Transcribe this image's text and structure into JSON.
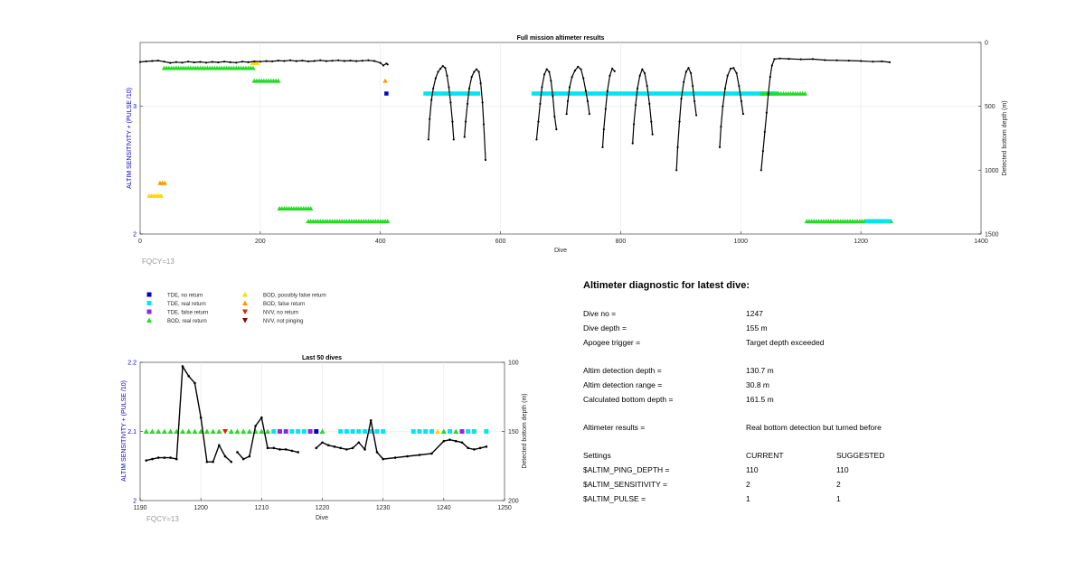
{
  "main_chart": {
    "title": "Full mission altimeter results",
    "xlabel": "Dive",
    "ylabel_left": "ALTIM SENSITIVITY + (PULSE /10)",
    "ylabel_right": "Detected bottom depth (m)",
    "note": "FQCY=13",
    "xticks": [
      "0",
      "200",
      "400",
      "600",
      "800",
      "1000",
      "1200",
      "1400"
    ],
    "yticks_left": [
      "2",
      "3"
    ],
    "yticks_right": [
      "0",
      "500",
      "1000",
      "1500"
    ]
  },
  "inset_chart": {
    "title": "Last 50 dives",
    "xlabel": "Dive",
    "ylabel_left": "ALTIM SENSITIVITY + (PULSE /10)",
    "ylabel_right": "Detected bottom depth (m)",
    "note": "FQCY=13",
    "xticks": [
      "1190",
      "1200",
      "1210",
      "1220",
      "1230",
      "1240",
      "1250"
    ],
    "yticks_left": [
      "2",
      "2.1",
      "2.2"
    ],
    "yticks_right": [
      "100",
      "150",
      "200"
    ]
  },
  "legend": {
    "items": [
      {
        "label": "TDE, no return",
        "color": "#0000c8",
        "shape": "square"
      },
      {
        "label": "TDE, real return",
        "color": "#00e5ee",
        "shape": "square"
      },
      {
        "label": "TDE, false return",
        "color": "#8a2be2",
        "shape": "square"
      },
      {
        "label": "BOD, real return",
        "color": "#22dd22",
        "shape": "triangle-up"
      },
      {
        "label": "BOD, possibly false return",
        "color": "#ffd700",
        "shape": "triangle-up"
      },
      {
        "label": "BOD, false return",
        "color": "#ff9900",
        "shape": "triangle-up"
      },
      {
        "label": "NVV, no return",
        "color": "#dd2200",
        "shape": "triangle-down"
      },
      {
        "label": "NVV, not pinging",
        "color": "#880000",
        "shape": "triangle-down"
      }
    ]
  },
  "diagnostic": {
    "title": "Altimeter diagnostic for latest dive:",
    "dive_no_label": "Dive no =",
    "dive_no": "1247",
    "dive_depth_label": "Dive depth =",
    "dive_depth": "155 m",
    "apogee_label": "Apogee trigger =",
    "apogee": "Target depth exceeded",
    "detect_depth_label": "Altim detection depth =",
    "detect_depth": "130.7 m",
    "detect_range_label": "Altim detection range =",
    "detect_range": "30.8 m",
    "calc_bottom_label": "Calculated bottom depth =",
    "calc_bottom": "161.5 m",
    "results_label": "Altimeter results =",
    "results": "Real bottom detection but turned before",
    "settings_label": "Settings",
    "current_label": "CURRENT",
    "suggested_label": "SUGGESTED",
    "settings": [
      {
        "name": "$ALTIM_PING_DEPTH =",
        "current": "110",
        "suggested": "110"
      },
      {
        "name": "$ALTIM_SENSITIVITY =",
        "current": "2",
        "suggested": "2"
      },
      {
        "name": "$ALTIM_PULSE =",
        "current": "1",
        "suggested": "1"
      }
    ]
  },
  "chart_data": [
    {
      "type": "scatter",
      "title": "Full mission altimeter results",
      "xlabel": "Dive",
      "ylabel": "ALTIM SENSITIVITY + (PULSE /10)",
      "y2label": "Detected bottom depth (m)",
      "xlim": [
        0,
        1400
      ],
      "ylim": [
        2,
        3.5
      ],
      "y2lim": [
        0,
        1500
      ],
      "y2_reversed": true,
      "depth_segments": [
        [
          [
            0,
            153
          ],
          [
            10,
            148
          ],
          [
            20,
            145
          ],
          [
            30,
            142
          ],
          [
            40,
            150
          ],
          [
            50,
            160
          ],
          [
            60,
            154
          ],
          [
            70,
            158
          ],
          [
            80,
            150
          ],
          [
            90,
            156
          ],
          [
            100,
            152
          ],
          [
            110,
            158
          ],
          [
            120,
            152
          ],
          [
            130,
            156
          ],
          [
            140,
            150
          ],
          [
            150,
            155
          ],
          [
            160,
            158
          ],
          [
            170,
            150
          ],
          [
            180,
            155
          ],
          [
            190,
            148
          ],
          [
            200,
            150
          ],
          [
            210,
            146
          ],
          [
            220,
            148
          ],
          [
            230,
            142
          ],
          [
            240,
            145
          ],
          [
            250,
            140
          ],
          [
            260,
            146
          ],
          [
            270,
            142
          ],
          [
            280,
            148
          ],
          [
            290,
            145
          ],
          [
            300,
            140
          ],
          [
            310,
            146
          ],
          [
            320,
            143
          ],
          [
            330,
            140
          ],
          [
            340,
            145
          ],
          [
            350,
            142
          ],
          [
            360,
            146
          ],
          [
            370,
            143
          ],
          [
            380,
            140
          ],
          [
            390,
            145
          ],
          [
            400,
            160
          ],
          [
            405,
            180
          ],
          [
            410,
            165
          ],
          [
            412,
            172
          ]
        ],
        [
          [
            480,
            760
          ],
          [
            482,
            600
          ],
          [
            485,
            450
          ],
          [
            488,
            360
          ],
          [
            492,
            280
          ],
          [
            496,
            230
          ],
          [
            500,
            205
          ],
          [
            504,
            185
          ],
          [
            508,
            200
          ],
          [
            511,
            260
          ],
          [
            514,
            350
          ],
          [
            517,
            470
          ],
          [
            520,
            620
          ],
          [
            522,
            760
          ]
        ],
        [
          [
            540,
            740
          ],
          [
            542,
            620
          ],
          [
            545,
            480
          ],
          [
            548,
            360
          ],
          [
            552,
            270
          ],
          [
            556,
            230
          ],
          [
            560,
            210
          ],
          [
            564,
            230
          ],
          [
            567,
            320
          ],
          [
            570,
            470
          ],
          [
            572,
            640
          ],
          [
            575,
            920
          ]
        ],
        [
          [
            660,
            760
          ],
          [
            663,
            620
          ],
          [
            666,
            480
          ],
          [
            669,
            350
          ],
          [
            673,
            250
          ],
          [
            677,
            210
          ],
          [
            681,
            230
          ],
          [
            684,
            300
          ],
          [
            687,
            420
          ],
          [
            690,
            580
          ],
          [
            693,
            680
          ]
        ],
        [
          [
            710,
            560
          ],
          [
            712,
            460
          ],
          [
            715,
            350
          ],
          [
            719,
            270
          ],
          [
            724,
            220
          ],
          [
            729,
            190
          ],
          [
            734,
            210
          ],
          [
            738,
            280
          ],
          [
            742,
            380
          ],
          [
            745,
            460
          ],
          [
            748,
            560
          ]
        ],
        [
          [
            770,
            820
          ],
          [
            772,
            680
          ],
          [
            775,
            520
          ],
          [
            778,
            380
          ],
          [
            782,
            260
          ],
          [
            786,
            205
          ],
          [
            790,
            225
          ]
        ],
        [
          [
            820,
            790
          ],
          [
            822,
            640
          ],
          [
            825,
            490
          ],
          [
            828,
            360
          ],
          [
            832,
            260
          ],
          [
            836,
            210
          ],
          [
            840,
            240
          ],
          [
            844,
            340
          ],
          [
            848,
            480
          ],
          [
            851,
            620
          ],
          [
            853,
            720
          ]
        ],
        [
          [
            893,
            1000
          ],
          [
            895,
            820
          ],
          [
            898,
            620
          ],
          [
            901,
            440
          ],
          [
            905,
            310
          ],
          [
            909,
            230
          ],
          [
            913,
            200
          ],
          [
            917,
            240
          ],
          [
            920,
            340
          ],
          [
            923,
            460
          ],
          [
            926,
            570
          ]
        ],
        [
          [
            965,
            820
          ],
          [
            967,
            660
          ],
          [
            970,
            500
          ],
          [
            974,
            360
          ],
          [
            978,
            260
          ],
          [
            983,
            205
          ],
          [
            988,
            200
          ],
          [
            993,
            240
          ],
          [
            997,
            340
          ],
          [
            1001,
            460
          ],
          [
            1004,
            560
          ]
        ],
        [
          [
            1034,
            1000
          ],
          [
            1037,
            850
          ],
          [
            1040,
            700
          ],
          [
            1043,
            550
          ],
          [
            1046,
            400
          ],
          [
            1049,
            270
          ],
          [
            1052,
            180
          ],
          [
            1056,
            130
          ],
          [
            1065,
            125
          ],
          [
            1080,
            128
          ],
          [
            1100,
            132
          ],
          [
            1120,
            130
          ],
          [
            1140,
            138
          ],
          [
            1160,
            140
          ],
          [
            1180,
            142
          ],
          [
            1200,
            145
          ],
          [
            1220,
            150
          ],
          [
            1235,
            148
          ],
          [
            1248,
            155
          ]
        ]
      ],
      "markers": [
        {
          "category": "BOD, real return",
          "x0": 40,
          "x1": 190,
          "y": 3.3
        },
        {
          "category": "BOD, possibly false return",
          "x0": 187,
          "x1": 197,
          "y": 3.34
        },
        {
          "category": "BOD, real return",
          "x0": 190,
          "x1": 232,
          "y": 3.2
        },
        {
          "category": "TDE, no return",
          "x0": 410,
          "x1": 412,
          "y": 3.1
        },
        {
          "category": "BOD, false return",
          "x0": 408,
          "x1": 410,
          "y": 3.2
        },
        {
          "category": "TDE, real return",
          "x0": 475,
          "x1": 565,
          "y": 3.1
        },
        {
          "category": "TDE, real return",
          "x0": 655,
          "x1": 1060,
          "y": 3.1
        },
        {
          "category": "BOD, real return",
          "x0": 1035,
          "x1": 1110,
          "y": 3.1
        },
        {
          "category": "BOD, possibly false return",
          "x0": 15,
          "x1": 38,
          "y": 2.3
        },
        {
          "category": "BOD, false return",
          "x0": 33,
          "x1": 42,
          "y": 2.4
        },
        {
          "category": "BOD, real return",
          "x0": 232,
          "x1": 285,
          "y": 2.2
        },
        {
          "category": "BOD, real return",
          "x0": 280,
          "x1": 415,
          "y": 2.1
        },
        {
          "category": "BOD, real return",
          "x0": 1110,
          "x1": 1250,
          "y": 2.1
        },
        {
          "category": "TDE, real return",
          "x0": 1210,
          "x1": 1248,
          "y": 2.1
        }
      ]
    },
    {
      "type": "scatter",
      "title": "Last 50 dives",
      "xlabel": "Dive",
      "ylabel": "ALTIM SENSITIVITY + (PULSE /10)",
      "y2label": "Detected bottom depth (m)",
      "xlim": [
        1190,
        1250
      ],
      "ylim": [
        2,
        2.2
      ],
      "y2lim": [
        100,
        200
      ],
      "y2_reversed": true,
      "depth_segments": [
        [
          [
            1191,
            171
          ],
          [
            1192,
            170
          ],
          [
            1193,
            169
          ],
          [
            1194,
            169
          ],
          [
            1195,
            169
          ],
          [
            1196,
            170
          ],
          [
            1197,
            103
          ],
          [
            1198,
            110
          ],
          [
            1199,
            115
          ],
          [
            1200,
            140
          ],
          [
            1201,
            172
          ],
          [
            1202,
            172
          ],
          [
            1203,
            160
          ],
          [
            1204,
            168
          ],
          [
            1205,
            172
          ]
        ],
        [
          [
            1206,
            165
          ],
          [
            1207,
            170
          ],
          [
            1208,
            168
          ],
          [
            1209,
            146
          ],
          [
            1210,
            140
          ],
          [
            1211,
            162
          ],
          [
            1212,
            162
          ],
          [
            1213,
            163
          ],
          [
            1214,
            163
          ],
          [
            1215,
            164
          ],
          [
            1216,
            165
          ]
        ],
        [
          [
            1219,
            162
          ],
          [
            1220,
            158
          ],
          [
            1221,
            160
          ],
          [
            1222,
            161
          ],
          [
            1223,
            162
          ],
          [
            1224,
            163
          ],
          [
            1225,
            162
          ],
          [
            1226,
            158
          ],
          [
            1227,
            163
          ],
          [
            1228,
            142
          ],
          [
            1229,
            165
          ],
          [
            1230,
            170
          ],
          [
            1232,
            169
          ],
          [
            1234,
            168
          ],
          [
            1236,
            167
          ],
          [
            1238,
            166
          ],
          [
            1240,
            157
          ],
          [
            1241,
            156
          ],
          [
            1242,
            157
          ],
          [
            1243,
            158
          ],
          [
            1244,
            162
          ],
          [
            1245,
            163
          ],
          [
            1246,
            162
          ],
          [
            1247,
            161
          ]
        ]
      ],
      "markers": [
        {
          "category": "BOD, real return",
          "x": [
            1191,
            1192,
            1193,
            1194,
            1195,
            1196,
            1197,
            1198,
            1199,
            1200,
            1201,
            1202,
            1203,
            1205,
            1206,
            1207,
            1208,
            1209,
            1210,
            1211,
            1220,
            1240,
            1242
          ],
          "y": 2.1
        },
        {
          "category": "NVV, no return",
          "x": [
            1204
          ],
          "y": 2.1
        },
        {
          "category": "TDE, false return",
          "x": [
            1213,
            1214,
            1218,
            1243
          ],
          "y": 2.1
        },
        {
          "category": "TDE, no return",
          "x": [
            1219
          ],
          "y": 2.1
        },
        {
          "category": "TDE, real return",
          "x": [
            1212,
            1215,
            1216,
            1217,
            1223,
            1224,
            1225,
            1226,
            1227,
            1228,
            1229,
            1230,
            1235,
            1236,
            1237,
            1238,
            1241,
            1244,
            1245,
            1247
          ],
          "y": 2.1
        },
        {
          "category": "BOD, possibly false return",
          "x": [
            1239
          ],
          "y": 2.1
        }
      ]
    }
  ]
}
